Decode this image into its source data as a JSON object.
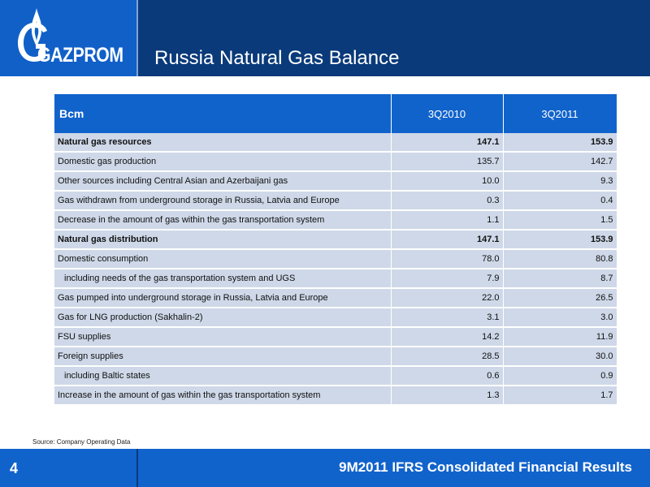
{
  "header": {
    "logo_text": "GAZPROM",
    "title": "Russia Natural Gas Balance"
  },
  "table": {
    "columns": [
      "Bcm",
      "3Q2010",
      "3Q2011"
    ],
    "rows": [
      {
        "label": "Natural gas resources",
        "v2010": "147.1",
        "v2011": "153.9"
      },
      {
        "label": "Domestic gas production",
        "v2010": "135.7",
        "v2011": "142.7"
      },
      {
        "label": "Other sources including Central Asian and Azerbaijani gas",
        "v2010": "10.0",
        "v2011": "9.3"
      },
      {
        "label": "Gas withdrawn from underground storage in Russia, Latvia and Europe",
        "v2010": "0.3",
        "v2011": "0.4"
      },
      {
        "label": "Decrease in the amount of gas within the gas transportation system",
        "v2010": "1.1",
        "v2011": "1.5"
      },
      {
        "label": "Natural gas distribution",
        "v2010": "147.1",
        "v2011": "153.9"
      },
      {
        "label": "Domestic consumption",
        "v2010": "78.0",
        "v2011": "80.8"
      },
      {
        "label": "including needs of the gas transportation system and UGS",
        "v2010": "7.9",
        "v2011": "8.7"
      },
      {
        "label": "Gas pumped into underground storage in Russia, Latvia and Europe",
        "v2010": "22.0",
        "v2011": "26.5"
      },
      {
        "label": "Gas for LNG production (Sakhalin-2)",
        "v2010": "3.1",
        "v2011": "3.0"
      },
      {
        "label": "FSU supplies",
        "v2010": "14.2",
        "v2011": "11.9"
      },
      {
        "label": "Foreign supplies",
        "v2010": "28.5",
        "v2011": "30.0"
      },
      {
        "label": "including Baltic states",
        "v2010": "0.6",
        "v2011": "0.9"
      },
      {
        "label": "Increase in the amount of gas within the gas transportation system",
        "v2010": "1.3",
        "v2011": "1.7"
      }
    ]
  },
  "source": "Source: Company Operating Data",
  "footer": {
    "page_number": "4",
    "title": "9M2011 IFRS Consolidated Financial Results"
  }
}
